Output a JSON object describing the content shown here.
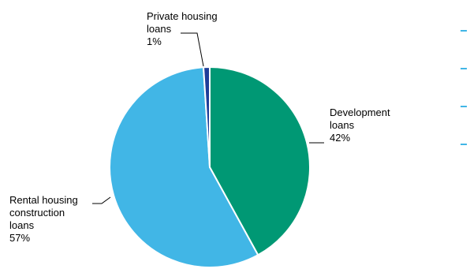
{
  "chart_data": {
    "type": "pie",
    "title": "",
    "slices": [
      {
        "label_lines": [
          "Development",
          "loans"
        ],
        "value": 42,
        "value_text": "42%",
        "color": "#009874"
      },
      {
        "label_lines": [
          "Rental housing",
          "construction",
          "loans"
        ],
        "value": 57,
        "value_text": "57%",
        "color": "#41b6e6"
      },
      {
        "label_lines": [
          "Private housing",
          "loans"
        ],
        "value": 1,
        "value_text": "1%",
        "color": "#1f3d99"
      }
    ],
    "start_angle_deg": 0,
    "direction": "clockwise",
    "legend": {
      "position": "top-right",
      "marker_color": "#41b6e6",
      "entries": [
        "",
        "",
        "",
        ""
      ]
    }
  }
}
